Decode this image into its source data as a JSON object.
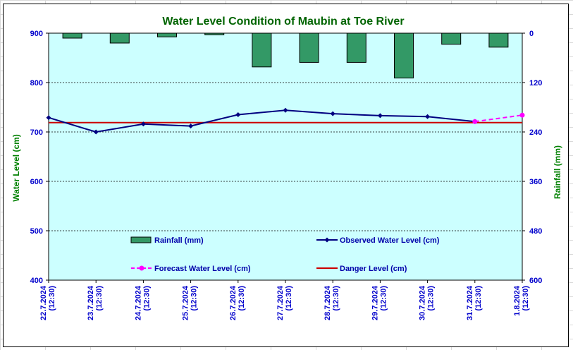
{
  "chart_data": {
    "type": "line",
    "title": "Water Level Condition of  Maubin at Toe River",
    "ylabel": "Water Level (cm)",
    "y2label": "Rainfall (mm)",
    "ylim": [
      400,
      900
    ],
    "y2lim": [
      0,
      600
    ],
    "y2_inverted": true,
    "yticks": [
      "900",
      "800",
      "700",
      "600",
      "500",
      "400"
    ],
    "y2ticks": [
      "0",
      "120",
      "240",
      "360",
      "480",
      "600"
    ],
    "categories": [
      [
        "22.7.2024",
        "(12:30)"
      ],
      [
        "23.7.2024",
        "(12:30)"
      ],
      [
        "24.7.2024",
        "(12:30)"
      ],
      [
        "25.7.2024",
        "(12:30)"
      ],
      [
        "26.7.2024",
        "(12:30)"
      ],
      [
        "27.7.2024",
        "(12:30)"
      ],
      [
        "28.7.2024",
        "(12:30)"
      ],
      [
        "29.7.2024",
        "(12:30)"
      ],
      [
        "30.7.2024",
        "(12:30)"
      ],
      [
        "31.7.2024",
        "(12:30)"
      ],
      [
        "1.8.2024",
        "(12:30)"
      ]
    ],
    "grid": true,
    "legend_position": "inside-bottom",
    "series": [
      {
        "name": "Rainfall (mm)",
        "kind": "bar",
        "axis": "y2",
        "color": "#339966",
        "values": [
          12,
          24,
          9,
          4,
          82,
          71,
          71,
          109,
          27,
          34,
          null
        ]
      },
      {
        "name": "Observed Water Level (cm)",
        "kind": "line",
        "axis": "y",
        "color": "#000080",
        "marker": "diamond",
        "values": [
          729,
          700,
          716,
          712,
          735,
          744,
          737,
          733,
          731,
          721,
          null
        ]
      },
      {
        "name": "Forecast Water Level (cm)",
        "kind": "line",
        "axis": "y",
        "color": "#ff00ff",
        "marker": "circle",
        "dashed": true,
        "values": [
          null,
          null,
          null,
          null,
          null,
          null,
          null,
          null,
          null,
          721,
          734
        ]
      },
      {
        "name": "Danger Level (cm)",
        "kind": "hline",
        "axis": "y",
        "color": "#cc0000",
        "value": 719
      }
    ]
  }
}
